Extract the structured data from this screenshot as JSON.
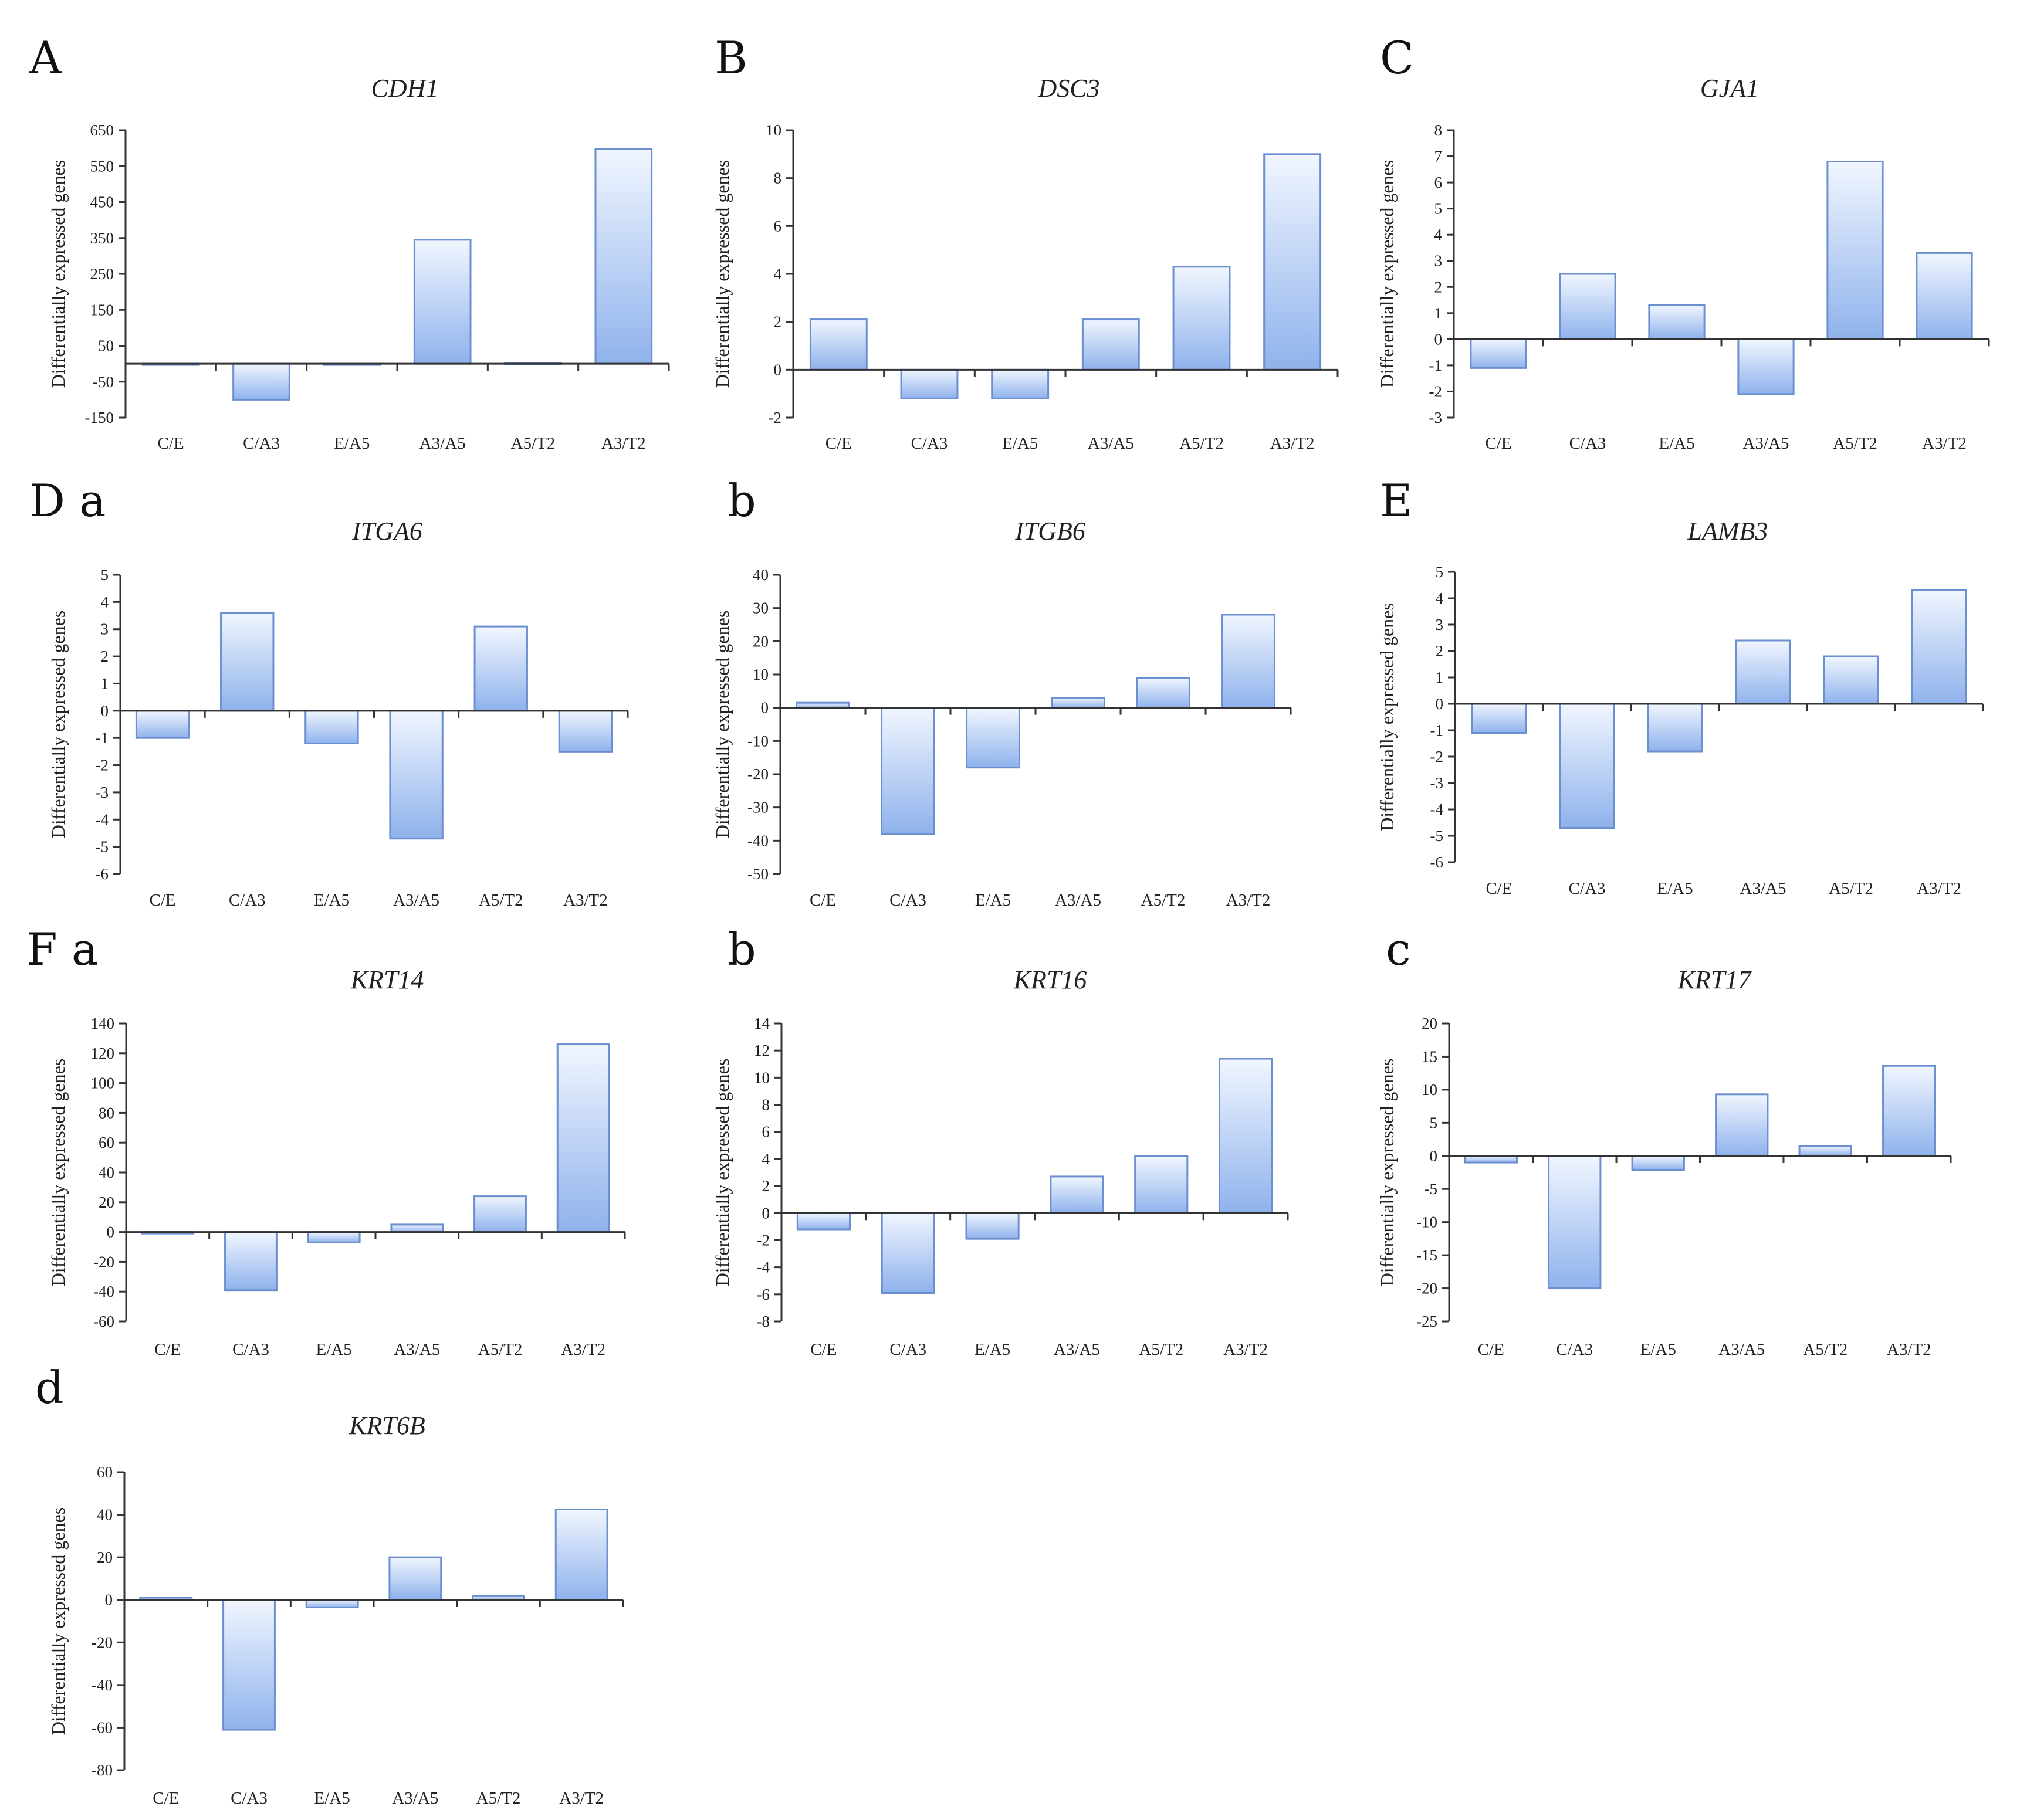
{
  "figure": {
    "bar_gradient": {
      "top": "#f1f6ff",
      "bottom": "#8fb2ec"
    },
    "bar_stroke": "#6b8fcf",
    "axis_color": "#333333"
  },
  "chart_data": [
    {
      "id": "A",
      "type": "bar",
      "panel_label": "A",
      "title": "CDH1",
      "ylabel": "Differentially expressed genes",
      "categories": [
        "C/E",
        "C/A3",
        "E/A5",
        "A3/A5",
        "A5/T2",
        "A3/T2"
      ],
      "values": [
        -1,
        -100,
        -1,
        345,
        1,
        598
      ],
      "ylim": [
        -150,
        650
      ],
      "yticks": [
        -150,
        -50,
        50,
        150,
        250,
        350,
        450,
        550,
        650
      ],
      "ytick_labels": [
        "-150",
        "-50",
        "50",
        "150",
        "250",
        "350",
        "450",
        "550",
        "650"
      ]
    },
    {
      "id": "B",
      "type": "bar",
      "panel_label": "B",
      "title": "DSC3",
      "ylabel": "Differentially expressed genes",
      "categories": [
        "C/E",
        "C/A3",
        "E/A5",
        "A3/A5",
        "A5/T2",
        "A3/T2"
      ],
      "values": [
        2.1,
        -1.2,
        -1.2,
        2.1,
        4.3,
        9.0
      ],
      "ylim": [
        -2,
        10
      ],
      "yticks": [
        -2,
        0,
        2,
        4,
        6,
        8,
        10
      ],
      "ytick_labels": [
        "-2",
        "0",
        "2",
        "4",
        "6",
        "8",
        "10"
      ]
    },
    {
      "id": "C",
      "type": "bar",
      "panel_label": "C",
      "title": "GJA1",
      "ylabel": "Differentially expressed genes",
      "categories": [
        "C/E",
        "C/A3",
        "E/A5",
        "A3/A5",
        "A5/T2",
        "A3/T2"
      ],
      "values": [
        -1.1,
        2.5,
        1.3,
        -2.1,
        6.8,
        3.3
      ],
      "ylim": [
        -3,
        8
      ],
      "yticks": [
        -3,
        -2,
        -1,
        0,
        1,
        2,
        3,
        4,
        5,
        6,
        7,
        8
      ],
      "ytick_labels": [
        "-3",
        "-2",
        "-1",
        "0",
        "1",
        "2",
        "3",
        "4",
        "5",
        "6",
        "7",
        "8"
      ]
    },
    {
      "id": "Da",
      "type": "bar",
      "panel_label": "D a",
      "title": "ITGA6",
      "ylabel": "Differentially expressed genes",
      "categories": [
        "C/E",
        "C/A3",
        "E/A5",
        "A3/A5",
        "A5/T2",
        "A3/T2"
      ],
      "values": [
        -1.0,
        3.6,
        -1.2,
        -4.7,
        3.1,
        -1.5
      ],
      "ylim": [
        -6,
        5
      ],
      "yticks": [
        -6,
        -5,
        -4,
        -3,
        -2,
        -1,
        0,
        1,
        2,
        3,
        4,
        5
      ],
      "ytick_labels": [
        "-6",
        "-5",
        "-4",
        "-3",
        "-2",
        "-1",
        "0",
        "1",
        "2",
        "3",
        "4",
        "5"
      ]
    },
    {
      "id": "Db",
      "type": "bar",
      "panel_label": "b",
      "title": "ITGB6",
      "ylabel": "Differentially expressed genes",
      "categories": [
        "C/E",
        "C/A3",
        "E/A5",
        "A3/A5",
        "A5/T2",
        "A3/T2"
      ],
      "values": [
        1.5,
        -38,
        -18,
        3,
        9,
        28
      ],
      "ylim": [
        -50,
        40
      ],
      "yticks": [
        -50,
        -40,
        -30,
        -20,
        -10,
        0,
        10,
        20,
        30,
        40
      ],
      "ytick_labels": [
        "-50",
        "-40",
        "-30",
        "-20",
        "-10",
        "0",
        "10",
        "20",
        "30",
        "40"
      ]
    },
    {
      "id": "E",
      "type": "bar",
      "panel_label": "E",
      "title": "LAMB3",
      "ylabel": "Differentially expressed genes",
      "categories": [
        "C/E",
        "C/A3",
        "E/A5",
        "A3/A5",
        "A5/T2",
        "A3/T2"
      ],
      "values": [
        -1.1,
        -4.7,
        -1.8,
        2.4,
        1.8,
        4.3
      ],
      "ylim": [
        -6,
        5
      ],
      "yticks": [
        -6,
        -5,
        -4,
        -3,
        -2,
        -1,
        0,
        1,
        2,
        3,
        4,
        5
      ],
      "ytick_labels": [
        "-6",
        "-5",
        "-4",
        "-3",
        "-2",
        "-1",
        "0",
        "1",
        "2",
        "3",
        "4",
        "5"
      ]
    },
    {
      "id": "Fa",
      "type": "bar",
      "panel_label": "F a",
      "title": "KRT14",
      "ylabel": "Differentially expressed genes",
      "categories": [
        "C/E",
        "C/A3",
        "E/A5",
        "A3/A5",
        "A5/T2",
        "A3/T2"
      ],
      "values": [
        -1,
        -39,
        -7,
        5,
        24,
        126
      ],
      "ylim": [
        -60,
        140
      ],
      "yticks": [
        -60,
        -40,
        -20,
        0,
        20,
        40,
        60,
        80,
        100,
        120,
        140
      ],
      "ytick_labels": [
        "-60",
        "-40",
        "-20",
        "0",
        "20",
        "40",
        "60",
        "80",
        "100",
        "120",
        "140"
      ]
    },
    {
      "id": "Fb",
      "type": "bar",
      "panel_label": "b",
      "title": "KRT16",
      "ylabel": "Differentially expressed genes",
      "categories": [
        "C/E",
        "C/A3",
        "E/A5",
        "A3/A5",
        "A5/T2",
        "A3/T2"
      ],
      "values": [
        -1.2,
        -5.9,
        -1.9,
        2.7,
        4.2,
        11.4
      ],
      "ylim": [
        -8,
        14
      ],
      "yticks": [
        -8,
        -6,
        -4,
        -2,
        0,
        2,
        4,
        6,
        8,
        10,
        12,
        14
      ],
      "ytick_labels": [
        "-8",
        "-6",
        "-4",
        "-2",
        "0",
        "2",
        "4",
        "6",
        "8",
        "10",
        "12",
        "14"
      ]
    },
    {
      "id": "Fc",
      "type": "bar",
      "panel_label": "c",
      "title": "KRT17",
      "ylabel": "Differentially expressed genes",
      "categories": [
        "C/E",
        "C/A3",
        "E/A5",
        "A3/A5",
        "A5/T2",
        "A3/T2"
      ],
      "values": [
        -1.0,
        -20,
        -2.1,
        9.3,
        1.5,
        13.6
      ],
      "ylim": [
        -25,
        20
      ],
      "yticks": [
        -25,
        -20,
        -15,
        -10,
        -5,
        0,
        5,
        10,
        15,
        20
      ],
      "ytick_labels": [
        "-25",
        "-20",
        "-15",
        "-10",
        "-5",
        "0",
        "5",
        "10",
        "15",
        "20"
      ]
    },
    {
      "id": "Fd",
      "type": "bar",
      "panel_label": "d",
      "title": "KRT6B",
      "ylabel": "Differentially expressed genes",
      "categories": [
        "C/E",
        "C/A3",
        "E/A5",
        "A3/A5",
        "A5/T2",
        "A3/T2"
      ],
      "values": [
        1,
        -61,
        -3.5,
        20,
        2,
        42.5
      ],
      "ylim": [
        -80,
        60
      ],
      "yticks": [
        -80,
        -60,
        -40,
        -20,
        0,
        20,
        40,
        60
      ],
      "ytick_labels": [
        "-80",
        "-60",
        "-40",
        "-20",
        "0",
        "20",
        "40",
        "60"
      ]
    }
  ]
}
